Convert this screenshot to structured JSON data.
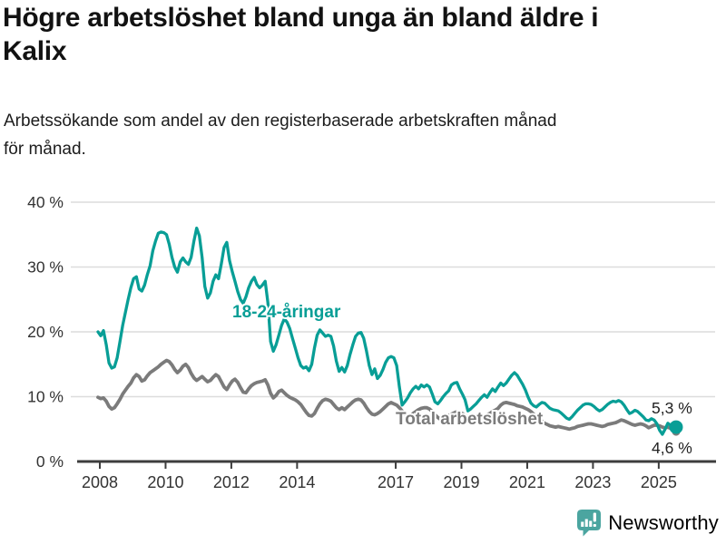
{
  "header": {
    "title": "Högre arbetslöshet bland unga än bland äldre i Kalix",
    "subtitle": "Arbetssökande som andel av den registerbaserade arbetskraften månad för månad."
  },
  "footer": {
    "brand": "Newsworthy"
  },
  "colors": {
    "young": "#089e96",
    "total": "#7b7b7b",
    "grid": "#dcdcdc",
    "axis": "#3d3d3d",
    "tick_text": "#333333",
    "end_label_text": "#222222",
    "title_text": "#121212",
    "logo_icon": "#4ba5a0",
    "logo_text": "#35a099"
  },
  "chart_data": {
    "type": "line",
    "x_unit": "month",
    "x_start": "2008-01",
    "x_end": "2025-08",
    "ylim": [
      0,
      40
    ],
    "grid": "horizontal",
    "y_tick_values": [
      0,
      10,
      20,
      30,
      40
    ],
    "y_tick_labels": [
      "0 %",
      "10 %",
      "20 %",
      "30 %",
      "40 %"
    ],
    "x_tick_years": [
      2008,
      2010,
      2012,
      2014,
      2017,
      2019,
      2021,
      2023,
      2025
    ],
    "x_tick_labels": [
      "2008",
      "2010",
      "2012",
      "2014",
      "2017",
      "2019",
      "2021",
      "2023",
      "2025"
    ],
    "annotations": {
      "young_series_label": "18-24-åringar",
      "total_series_label": "Total arbetslöshet",
      "young_end_label": "5,3 %",
      "total_end_label": "4,6 %"
    },
    "series": [
      {
        "name": "18-24-åringar",
        "color": "#089e96",
        "values": [
          20,
          19.4,
          20.2,
          18,
          15.2,
          14.4,
          14.6,
          16,
          18.5,
          21,
          23,
          25,
          26.8,
          28.2,
          28.5,
          26.6,
          26.3,
          27.2,
          28.8,
          30.2,
          32.5,
          34,
          35.2,
          35.4,
          35.3,
          35,
          33.5,
          31.5,
          30,
          29.2,
          30.8,
          31.4,
          30.8,
          30.4,
          31.5,
          34,
          36,
          34.8,
          31.5,
          27,
          25.2,
          26,
          27.8,
          28.8,
          28.2,
          30.5,
          33,
          33.8,
          31,
          29.3,
          27.8,
          26.2,
          25,
          24.4,
          25.4,
          26.8,
          27.8,
          28.4,
          27.3,
          26.8,
          27.2,
          27.8,
          24.5,
          18.5,
          17,
          18,
          19.5,
          21,
          22,
          21.5,
          20.5,
          19,
          17.5,
          16,
          14.8,
          14.4,
          14.6,
          14,
          15,
          17.5,
          19.5,
          20.3,
          19.8,
          19.3,
          19.5,
          19.3,
          17.8,
          15.5,
          13.9,
          14.5,
          13.8,
          14.8,
          16.5,
          18,
          19.3,
          19.8,
          19.9,
          19,
          17,
          14.8,
          13.4,
          14.3,
          12.8,
          13.3,
          14.2,
          15.3,
          16,
          16.2,
          16,
          14.8,
          11.5,
          8.7,
          9.2,
          9.8,
          10.6,
          11.2,
          11.6,
          11.2,
          11.8,
          11.5,
          11.8,
          11.5,
          10.4,
          9.2,
          8.9,
          9.4,
          10,
          10.5,
          10.9,
          11.8,
          12.1,
          12.2,
          11.2,
          10.4,
          9.5,
          7.8,
          8.1,
          8.5,
          8.9,
          9.4,
          9.9,
          10.3,
          9.9,
          10.6,
          11.2,
          10.8,
          11.5,
          12.1,
          11.7,
          12.1,
          12.7,
          13.3,
          13.7,
          13.3,
          12.6,
          11.9,
          11,
          9.9,
          9,
          8.6,
          8.4,
          8.8,
          9.1,
          9,
          8.6,
          8.2,
          8,
          7.9,
          7.8,
          7.5,
          7.1,
          6.7,
          6.5,
          6.9,
          7.4,
          7.9,
          8.3,
          8.7,
          8.9,
          8.9,
          8.8,
          8.5,
          8.1,
          7.8,
          8,
          8.4,
          8.8,
          9.1,
          9.3,
          9.2,
          9.4,
          9.2,
          8.7,
          8,
          7.4,
          7.6,
          7.9,
          7.7,
          7.3,
          6.9,
          6.4,
          6.3,
          6.6,
          6.4,
          5.8,
          4.8,
          4.2,
          5,
          5.9,
          5.6,
          5.2,
          5.3
        ]
      },
      {
        "name": "Total arbetslöshet",
        "color": "#7b7b7b",
        "values": [
          9.9,
          9.7,
          9.8,
          9.3,
          8.5,
          8.1,
          8.3,
          8.9,
          9.6,
          10.4,
          11,
          11.6,
          12.1,
          12.9,
          13.4,
          13.1,
          12.4,
          12.6,
          13.2,
          13.7,
          14,
          14.3,
          14.6,
          15,
          15.3,
          15.6,
          15.4,
          14.9,
          14.2,
          13.7,
          14.1,
          14.7,
          15,
          14.5,
          13.6,
          12.9,
          12.5,
          12.8,
          13.1,
          12.7,
          12.3,
          12.5,
          13,
          13.4,
          13.1,
          12.3,
          11.5,
          11.1,
          11.8,
          12.4,
          12.7,
          12.2,
          11.4,
          10.7,
          10.6,
          11.2,
          11.7,
          12,
          12.2,
          12.3,
          12.4,
          12.6,
          11.8,
          10.5,
          9.8,
          10.2,
          10.8,
          11,
          10.6,
          10.2,
          9.9,
          9.7,
          9.5,
          9.2,
          8.8,
          8.2,
          7.6,
          7.1,
          7,
          7.4,
          8.2,
          8.9,
          9.4,
          9.6,
          9.5,
          9.3,
          8.8,
          8.3,
          8,
          8.3,
          8,
          8.4,
          8.8,
          9.2,
          9.5,
          9.6,
          9.5,
          9,
          8.3,
          7.7,
          7.3,
          7.2,
          7.4,
          7.7,
          8.1,
          8.5,
          8.9,
          9.1,
          8.9,
          8.7,
          8.3,
          7.8,
          7.3,
          7,
          7.1,
          7.4,
          7.7,
          8,
          8.2,
          8.3,
          8.3,
          8.1,
          7.7,
          7.2,
          6.8,
          6.5,
          6.6,
          6.9,
          7.1,
          7.3,
          7.5,
          7.7,
          7.6,
          7.4,
          7.1,
          6.7,
          6.3,
          6.2,
          6.4,
          6.6,
          6.8,
          7,
          7.2,
          7.4,
          7.7,
          7.9,
          8.2,
          8.7,
          9,
          9.1,
          9,
          8.9,
          8.8,
          8.6,
          8.5,
          8.4,
          8.2,
          8,
          7.7,
          7.3,
          6.9,
          6.5,
          6.2,
          5.9,
          5.7,
          5.5,
          5.4,
          5.3,
          5.4,
          5.3,
          5.2,
          5.1,
          5,
          5.1,
          5.2,
          5.4,
          5.5,
          5.6,
          5.7,
          5.8,
          5.8,
          5.7,
          5.6,
          5.5,
          5.4,
          5.5,
          5.7,
          5.8,
          5.9,
          6,
          6.2,
          6.4,
          6.3,
          6.1,
          5.9,
          5.7,
          5.6,
          5.7,
          5.8,
          5.7,
          5.5,
          5.2,
          5.4,
          5.6,
          5.6,
          5.5,
          5.3,
          5.2,
          5.3,
          5.1,
          4.8,
          4.6
        ]
      }
    ]
  }
}
